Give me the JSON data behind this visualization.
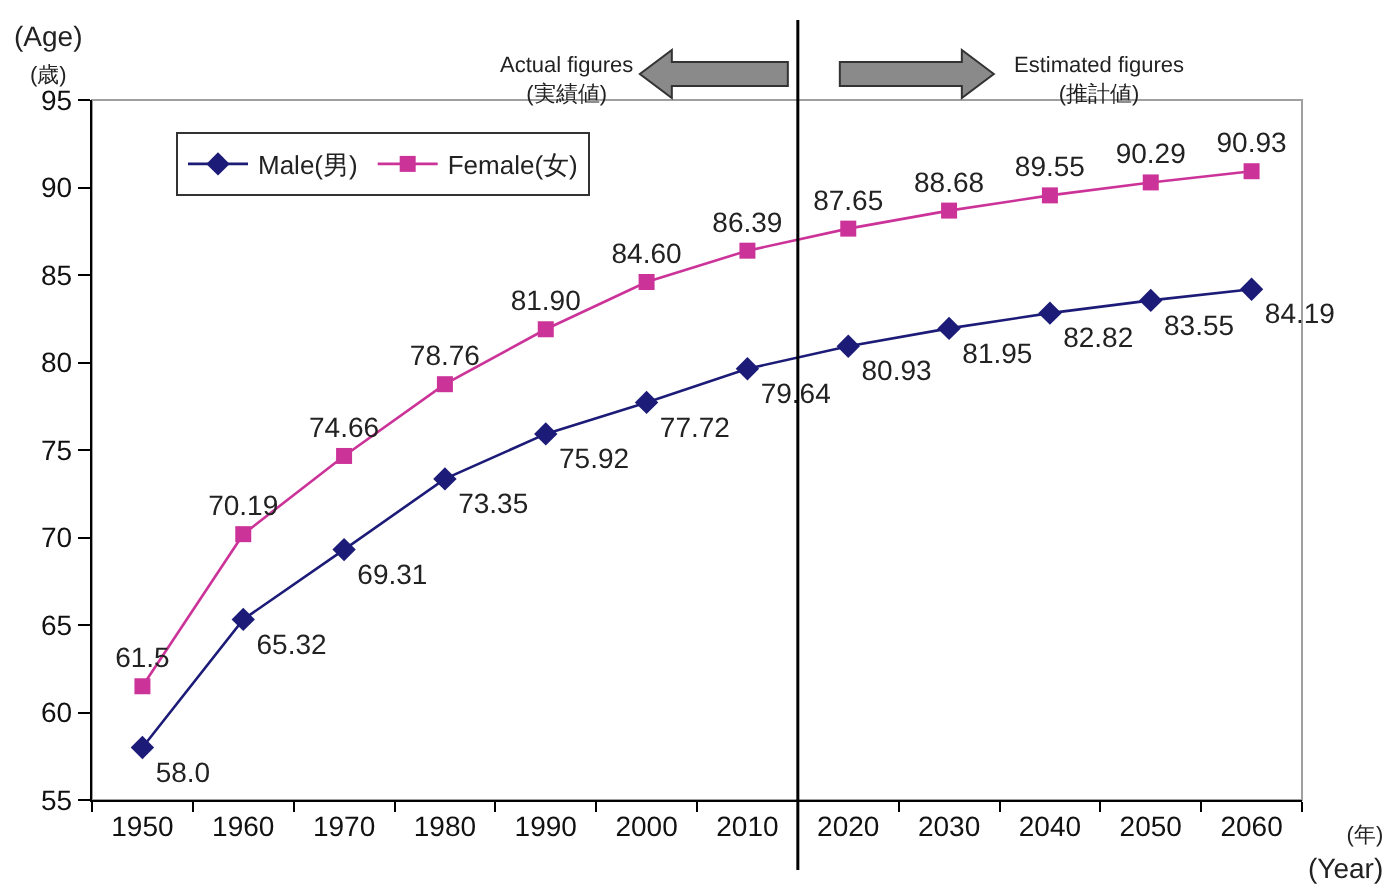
{
  "chart_data": {
    "type": "line",
    "x": [
      1950,
      1960,
      1970,
      1980,
      1990,
      2000,
      2010,
      2020,
      2030,
      2040,
      2050,
      2060
    ],
    "series": [
      {
        "name": "Male(男)",
        "color": "#1c1c78",
        "marker": "diamond",
        "values": [
          58.0,
          65.32,
          69.31,
          73.35,
          75.92,
          77.72,
          79.64,
          80.93,
          81.95,
          82.82,
          83.55,
          84.19
        ],
        "value_labels": [
          "58.0",
          "65.32",
          "69.31",
          "73.35",
          "75.92",
          "77.72",
          "79.64",
          "80.93",
          "81.95",
          "82.82",
          "83.55",
          "84.19"
        ]
      },
      {
        "name": "Female(女)",
        "color": "#cc3399",
        "marker": "square",
        "values": [
          61.5,
          70.19,
          74.66,
          78.76,
          81.9,
          84.6,
          86.39,
          87.65,
          88.68,
          89.55,
          90.29,
          90.93
        ],
        "value_labels": [
          "61.5",
          "70.19",
          "74.66",
          "78.76",
          "81.90",
          "84.60",
          "86.39",
          "87.65",
          "88.68",
          "89.55",
          "90.29",
          "90.93"
        ]
      }
    ],
    "xlim": [
      1945,
      2065
    ],
    "xticks": [
      {
        "value": 1945,
        "label": null
      },
      1950,
      {
        "value": 1955,
        "label": null
      },
      1960,
      {
        "value": 1965,
        "label": null
      },
      1970,
      {
        "value": 1975,
        "label": null
      },
      1980,
      {
        "value": 1985,
        "label": null
      },
      1990,
      {
        "value": 1995,
        "label": null
      },
      2000,
      {
        "value": 2005,
        "label": null
      },
      2010,
      {
        "value": 2015,
        "label": null
      },
      2020,
      {
        "value": 2025,
        "label": null
      },
      2030,
      {
        "value": 2035,
        "label": null
      },
      2040,
      {
        "value": 2045,
        "label": null
      },
      2050,
      {
        "value": 2055,
        "label": null
      },
      2060,
      {
        "value": 2065,
        "label": null
      }
    ],
    "ylim": [
      55,
      95
    ],
    "yticks": [
      55,
      60,
      65,
      70,
      75,
      80,
      85,
      90,
      95
    ],
    "ylabel": "(Age)\n(歳)",
    "xlabel": "(年)\n(Year)",
    "legend": "top left",
    "ref_lines": [
      {
        "axis": "x",
        "value": 2015,
        "color": "#000000"
      }
    ],
    "annotations": [
      "Actual figures\n(実績値)",
      "Estimated figures\n(推計値)"
    ]
  }
}
